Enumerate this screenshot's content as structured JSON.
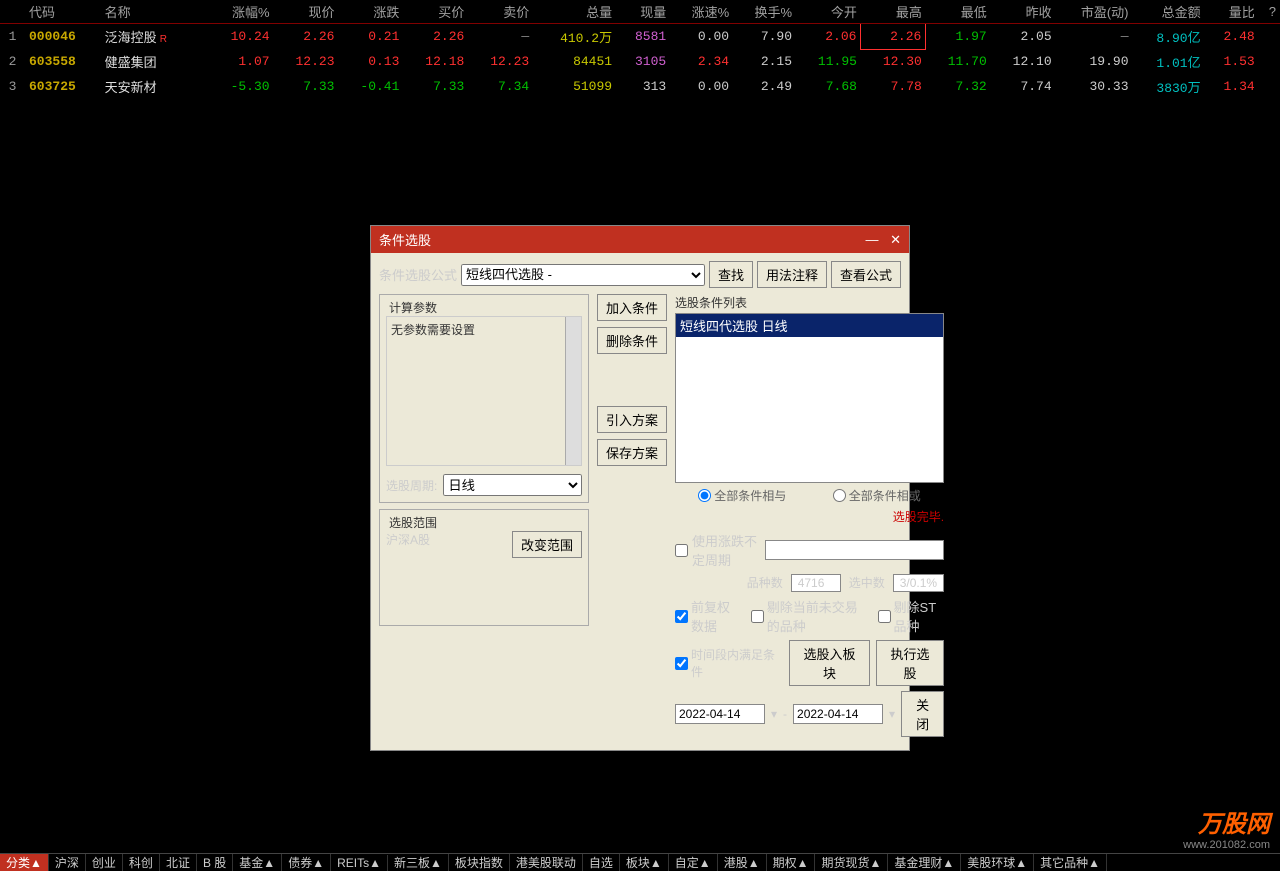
{
  "table": {
    "headers": [
      "",
      "代码",
      "名称",
      "",
      "涨幅%",
      "现价",
      "涨跌",
      "买价",
      "卖价",
      "总量",
      "现量",
      "涨速%",
      "换手%",
      "今开",
      "最高",
      "最低",
      "昨收",
      "市盈(动)",
      "总金额",
      "量比",
      "?"
    ],
    "rows": [
      {
        "idx": "1",
        "code": "000046",
        "name": "泛海控股",
        "badge": "R",
        "cells": [
          {
            "v": "10.24",
            "c": "up"
          },
          {
            "v": "2.26",
            "c": "up"
          },
          {
            "v": "0.21",
            "c": "up"
          },
          {
            "v": "2.26",
            "c": "up"
          },
          {
            "v": "—",
            "c": "dash"
          },
          {
            "v": "410.2万",
            "c": "vol"
          },
          {
            "v": "8581",
            "c": "purple"
          },
          {
            "v": "0.00",
            "c": "neutral"
          },
          {
            "v": "7.90",
            "c": "neutral"
          },
          {
            "v": "2.06",
            "c": "up"
          },
          {
            "v": "2.26",
            "c": "up boxed"
          },
          {
            "v": "1.97",
            "c": "down"
          },
          {
            "v": "2.05",
            "c": "neutral"
          },
          {
            "v": "—",
            "c": "dash"
          },
          {
            "v": "8.90亿",
            "c": "cyan"
          },
          {
            "v": "2.48",
            "c": "up"
          }
        ]
      },
      {
        "idx": "2",
        "code": "603558",
        "name": "健盛集团",
        "badge": "",
        "cells": [
          {
            "v": "1.07",
            "c": "up"
          },
          {
            "v": "12.23",
            "c": "up"
          },
          {
            "v": "0.13",
            "c": "up"
          },
          {
            "v": "12.18",
            "c": "up"
          },
          {
            "v": "12.23",
            "c": "up"
          },
          {
            "v": "84451",
            "c": "vol"
          },
          {
            "v": "3105",
            "c": "purple"
          },
          {
            "v": "2.34",
            "c": "up"
          },
          {
            "v": "2.15",
            "c": "neutral"
          },
          {
            "v": "11.95",
            "c": "down"
          },
          {
            "v": "12.30",
            "c": "up"
          },
          {
            "v": "11.70",
            "c": "down"
          },
          {
            "v": "12.10",
            "c": "neutral"
          },
          {
            "v": "19.90",
            "c": "neutral"
          },
          {
            "v": "1.01亿",
            "c": "cyan"
          },
          {
            "v": "1.53",
            "c": "up"
          }
        ]
      },
      {
        "idx": "3",
        "code": "603725",
        "name": "天安新材",
        "badge": "",
        "cells": [
          {
            "v": "-5.30",
            "c": "down"
          },
          {
            "v": "7.33",
            "c": "down"
          },
          {
            "v": "-0.41",
            "c": "down"
          },
          {
            "v": "7.33",
            "c": "down"
          },
          {
            "v": "7.34",
            "c": "down"
          },
          {
            "v": "51099",
            "c": "vol"
          },
          {
            "v": "313",
            "c": "neutral"
          },
          {
            "v": "0.00",
            "c": "neutral"
          },
          {
            "v": "2.49",
            "c": "neutral"
          },
          {
            "v": "7.68",
            "c": "down"
          },
          {
            "v": "7.78",
            "c": "up"
          },
          {
            "v": "7.32",
            "c": "down"
          },
          {
            "v": "7.74",
            "c": "neutral"
          },
          {
            "v": "30.33",
            "c": "neutral"
          },
          {
            "v": "3830万",
            "c": "cyan"
          },
          {
            "v": "1.34",
            "c": "up"
          }
        ]
      }
    ]
  },
  "dialog": {
    "title": "条件选股",
    "formula_label": "条件选股公式",
    "formula_value": "短线四代选股 -",
    "btn_find": "查找",
    "btn_usage": "用法注释",
    "btn_view": "查看公式",
    "calc_params": "计算参数",
    "no_params": "无参数需要设置",
    "period_label": "选股周期:",
    "period_value": "日线",
    "btn_add": "加入条件",
    "btn_del": "删除条件",
    "btn_import": "引入方案",
    "btn_save": "保存方案",
    "cond_list_label": "选股条件列表",
    "cond_item": "短线四代选股  日线",
    "radio_and": "全部条件相与",
    "radio_or": "全部条件相或",
    "range_title": "选股范围",
    "range_value": "沪深A股",
    "btn_change": "改变范围",
    "status": "选股完毕.",
    "ck_period": "使用涨跌不定周期",
    "stat_count_label": "品种数",
    "stat_count": "4716",
    "stat_sel_label": "选中数",
    "stat_sel": "3/0.1%",
    "ck_adj": "前复权数据",
    "ck_excl": "剔除当前未交易的品种",
    "ck_st": "剔除ST品种",
    "ck_time": "时间段内满足条件",
    "btn_block": "选股入板块",
    "btn_exec": "执行选股",
    "date_from": "2022-04-14",
    "date_to": "2022-04-14",
    "btn_close": "关闭"
  },
  "tabs": [
    "分类▲",
    "沪深",
    "创业",
    "科创",
    "北证",
    "B 股",
    "基金▲",
    "债券▲",
    "REITs▲",
    "新三板▲",
    "板块指数",
    "港美股联动",
    "自选",
    "板块▲",
    "自定▲",
    "港股▲",
    "期权▲",
    "期货现货▲",
    "基金理财▲",
    "美股环球▲",
    "其它品种▲"
  ],
  "logo": {
    "main": "万股网",
    "sub": "www.201082.com"
  }
}
